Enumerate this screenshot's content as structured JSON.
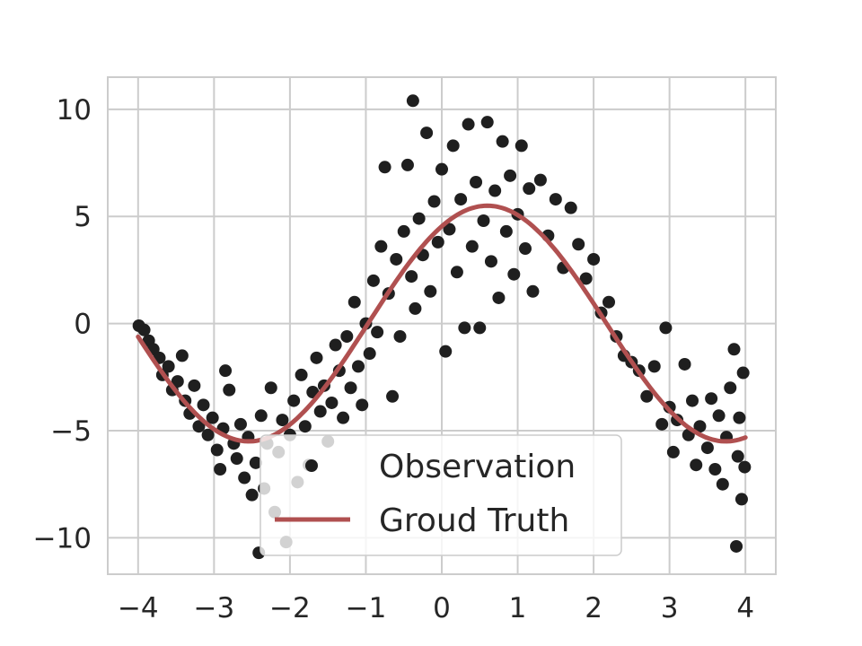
{
  "chart_data": {
    "type": "scatter",
    "title": "",
    "xlabel": "",
    "ylabel": "",
    "xlim": [
      -4.4,
      4.4
    ],
    "ylim": [
      -11.7,
      11.5
    ],
    "x_ticks": [
      -4,
      -3,
      -2,
      -1,
      0,
      1,
      2,
      3,
      4
    ],
    "x_tick_labels": [
      "−4",
      "−3",
      "−2",
      "−1",
      "0",
      "1",
      "2",
      "3",
      "4"
    ],
    "y_ticks": [
      10,
      5,
      0,
      -5,
      -10
    ],
    "y_tick_labels": [
      "10",
      "5",
      "0",
      "−5",
      "−10"
    ],
    "grid": true,
    "legend_position": "lower center",
    "truth": {
      "amplitude": 5.5,
      "x_shift": 0.6,
      "x_range": [
        -4,
        4
      ]
    },
    "series": [
      {
        "name": "Observation",
        "kind": "scatter",
        "color": "#1f1f1f",
        "points": [
          [
            -3.99,
            -0.1
          ],
          [
            -3.92,
            -0.3
          ],
          [
            -3.86,
            -0.8
          ],
          [
            -3.8,
            -1.2
          ],
          [
            -3.72,
            -1.6
          ],
          [
            -3.68,
            -2.4
          ],
          [
            -3.6,
            -2.0
          ],
          [
            -3.55,
            -3.1
          ],
          [
            -3.48,
            -2.7
          ],
          [
            -3.42,
            -1.5
          ],
          [
            -3.38,
            -3.6
          ],
          [
            -3.32,
            -4.2
          ],
          [
            -3.26,
            -2.9
          ],
          [
            -3.2,
            -4.8
          ],
          [
            -3.14,
            -3.8
          ],
          [
            -3.08,
            -5.2
          ],
          [
            -3.02,
            -4.4
          ],
          [
            -2.96,
            -5.9
          ],
          [
            -2.92,
            -6.8
          ],
          [
            -2.88,
            -4.9
          ],
          [
            -2.85,
            -2.2
          ],
          [
            -2.8,
            -3.1
          ],
          [
            -2.74,
            -5.6
          ],
          [
            -2.7,
            -6.3
          ],
          [
            -2.65,
            -4.7
          ],
          [
            -2.6,
            -7.2
          ],
          [
            -2.55,
            -5.3
          ],
          [
            -2.5,
            -8.0
          ],
          [
            -2.45,
            -6.5
          ],
          [
            -2.41,
            -10.7
          ],
          [
            -2.38,
            -4.3
          ],
          [
            -2.34,
            -7.7
          ],
          [
            -2.3,
            -5.6
          ],
          [
            -2.25,
            -3.0
          ],
          [
            -2.2,
            -8.8
          ],
          [
            -2.15,
            -6.0
          ],
          [
            -2.1,
            -4.5
          ],
          [
            -2.05,
            -10.2
          ],
          [
            -2.0,
            -5.2
          ],
          [
            -1.95,
            -3.6
          ],
          [
            -1.9,
            -7.4
          ],
          [
            -1.85,
            -2.4
          ],
          [
            -1.8,
            -4.8
          ],
          [
            -1.75,
            -6.6
          ],
          [
            -1.7,
            -3.2
          ],
          [
            -1.65,
            -1.6
          ],
          [
            -1.6,
            -4.1
          ],
          [
            -1.55,
            -2.9
          ],
          [
            -1.5,
            -5.5
          ],
          [
            -1.45,
            -3.7
          ],
          [
            -1.4,
            -1.0
          ],
          [
            -1.35,
            -2.2
          ],
          [
            -1.3,
            -4.4
          ],
          [
            -1.25,
            -0.6
          ],
          [
            -1.2,
            -3.0
          ],
          [
            -1.15,
            1.0
          ],
          [
            -1.1,
            -2.0
          ],
          [
            -1.05,
            -3.8
          ],
          [
            -1.0,
            0.0
          ],
          [
            -0.95,
            -1.4
          ],
          [
            -0.9,
            2.0
          ],
          [
            -0.85,
            -0.4
          ],
          [
            -0.8,
            3.6
          ],
          [
            -0.75,
            7.3
          ],
          [
            -0.7,
            1.4
          ],
          [
            -0.65,
            -3.4
          ],
          [
            -0.6,
            3.0
          ],
          [
            -0.55,
            -0.6
          ],
          [
            -0.5,
            4.3
          ],
          [
            -0.45,
            7.4
          ],
          [
            -0.4,
            2.2
          ],
          [
            -0.38,
            10.4
          ],
          [
            -0.35,
            0.7
          ],
          [
            -0.3,
            4.9
          ],
          [
            -0.25,
            3.2
          ],
          [
            -0.2,
            8.9
          ],
          [
            -0.15,
            1.5
          ],
          [
            -0.1,
            5.7
          ],
          [
            -0.05,
            3.8
          ],
          [
            0.0,
            7.2
          ],
          [
            0.05,
            -1.3
          ],
          [
            0.1,
            4.4
          ],
          [
            0.15,
            8.3
          ],
          [
            0.2,
            2.4
          ],
          [
            0.25,
            5.8
          ],
          [
            0.3,
            -0.2
          ],
          [
            0.35,
            9.3
          ],
          [
            0.4,
            3.6
          ],
          [
            0.45,
            6.6
          ],
          [
            0.5,
            -0.2
          ],
          [
            0.55,
            4.8
          ],
          [
            0.6,
            9.4
          ],
          [
            0.65,
            2.9
          ],
          [
            0.7,
            6.2
          ],
          [
            0.75,
            1.2
          ],
          [
            0.8,
            8.5
          ],
          [
            0.85,
            4.3
          ],
          [
            0.9,
            6.9
          ],
          [
            0.95,
            2.3
          ],
          [
            1.0,
            5.1
          ],
          [
            1.05,
            8.3
          ],
          [
            1.1,
            3.5
          ],
          [
            1.15,
            6.3
          ],
          [
            1.2,
            1.5
          ],
          [
            1.3,
            6.7
          ],
          [
            1.4,
            4.1
          ],
          [
            1.5,
            5.8
          ],
          [
            1.6,
            2.6
          ],
          [
            1.7,
            5.4
          ],
          [
            1.8,
            3.7
          ],
          [
            1.9,
            2.1
          ],
          [
            2.0,
            3.0
          ],
          [
            2.1,
            0.5
          ],
          [
            2.2,
            1.0
          ],
          [
            2.3,
            -0.6
          ],
          [
            2.4,
            -1.5
          ],
          [
            2.5,
            -1.8
          ],
          [
            2.6,
            -2.2
          ],
          [
            2.7,
            -3.4
          ],
          [
            2.8,
            -2.0
          ],
          [
            2.9,
            -4.7
          ],
          [
            2.95,
            -0.2
          ],
          [
            3.0,
            -3.9
          ],
          [
            3.05,
            -6.0
          ],
          [
            3.1,
            -4.5
          ],
          [
            3.2,
            -1.9
          ],
          [
            3.25,
            -5.2
          ],
          [
            3.3,
            -3.6
          ],
          [
            3.35,
            -6.6
          ],
          [
            3.4,
            -4.8
          ],
          [
            3.5,
            -5.8
          ],
          [
            3.55,
            -3.5
          ],
          [
            3.6,
            -6.8
          ],
          [
            3.65,
            -4.3
          ],
          [
            3.7,
            -7.5
          ],
          [
            3.75,
            -5.3
          ],
          [
            3.8,
            -3.0
          ],
          [
            3.85,
            -1.2
          ],
          [
            3.88,
            -10.4
          ],
          [
            3.9,
            -6.2
          ],
          [
            3.92,
            -4.4
          ],
          [
            3.95,
            -8.2
          ],
          [
            3.97,
            -2.3
          ],
          [
            3.99,
            -6.7
          ]
        ]
      },
      {
        "name": "Groud Truth",
        "kind": "line",
        "color": "#b05050"
      }
    ]
  }
}
